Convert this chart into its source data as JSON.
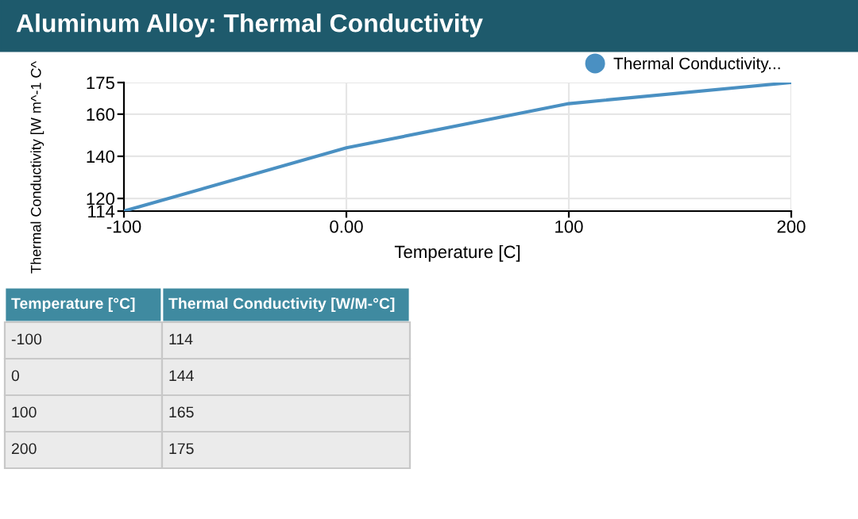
{
  "chart_data": {
    "type": "line",
    "title": "Aluminum Alloy: Thermal Conductivity",
    "xlabel": "Temperature [C]",
    "ylabel": "Thermal Conductivity [W m^-1 C^",
    "x": [
      -100,
      0,
      100,
      200
    ],
    "series": [
      {
        "name": "Thermal Conductivity...",
        "color": "#4a90c2",
        "values": [
          114,
          144,
          165,
          175
        ]
      }
    ],
    "xlim": [
      -100,
      200
    ],
    "xticks": [
      -100,
      {
        "value": 0,
        "label": "0.00"
      },
      100,
      200
    ],
    "ylim": [
      114,
      175
    ],
    "yticks": [
      114,
      120,
      140,
      160,
      175
    ],
    "grid": true,
    "legend": "top right",
    "marker": "none",
    "line_style": "solid",
    "annotations": [
      "Temperature [°C]",
      "Thermal Conductivity [W/M-°C]",
      "-100",
      "114",
      "0",
      "144",
      "100",
      "165",
      "200",
      "175"
    ]
  }
}
